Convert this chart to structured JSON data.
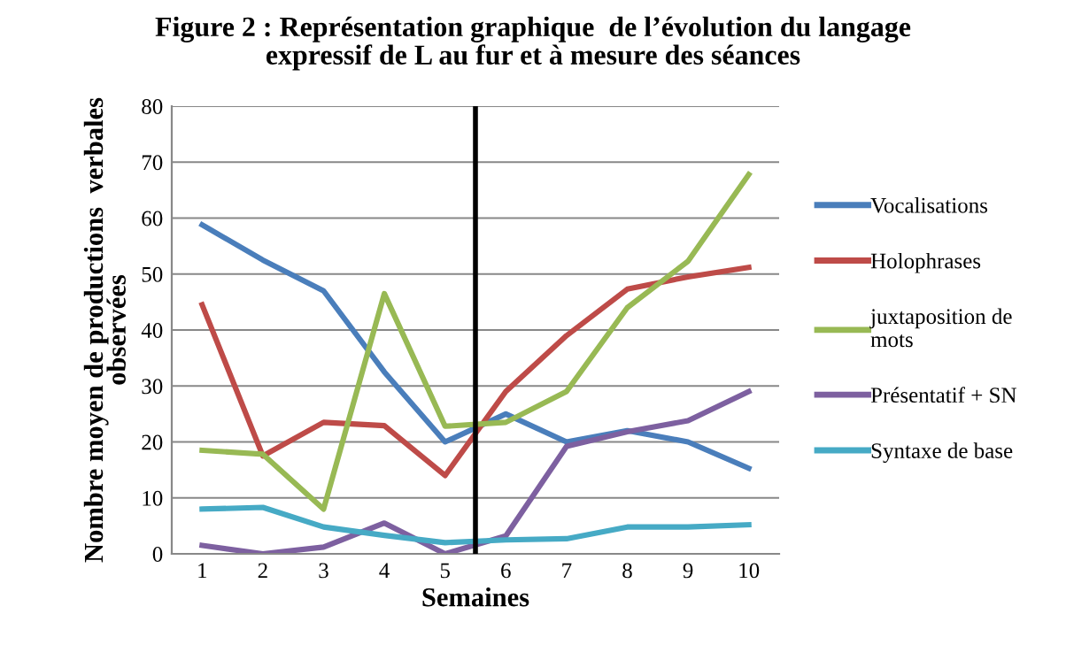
{
  "chart_data": {
    "type": "line",
    "title": "Figure 2 : Représentation graphique  de l’évolution du langage\nexpressif de L au fur et à mesure des séances",
    "xlabel": "Semaines",
    "ylabel": "Nombre moyen de productions  verbales\nobservées",
    "x": [
      1,
      2,
      3,
      4,
      5,
      6,
      7,
      8,
      9,
      10
    ],
    "xlim": [
      0.5,
      10.5
    ],
    "xticks": [
      1,
      2,
      3,
      4,
      5,
      6,
      7,
      8,
      9,
      10
    ],
    "ylim": [
      0,
      80
    ],
    "yticks": [
      0,
      10,
      20,
      30,
      40,
      50,
      60,
      70,
      80
    ],
    "grid": "y",
    "legend": "right",
    "marker": "none",
    "line_style": "solid",
    "ref_lines": [
      {
        "axis": "x",
        "value": 5.5,
        "color": "#000000",
        "line_style": "solid"
      }
    ],
    "series": [
      {
        "name": "Vocalisations",
        "color": "#4a7ebb",
        "values": [
          58.8,
          52.5,
          47,
          32.5,
          20,
          25,
          20,
          22,
          20,
          15.3
        ]
      },
      {
        "name": "Holophrases",
        "color": "#be4b48",
        "values": [
          44.5,
          17.5,
          23.5,
          22.9,
          14,
          29,
          39,
          47.3,
          49.5,
          51.2
        ]
      },
      {
        "name": "juxtaposition de\nmots",
        "color": "#98b954",
        "values": [
          18.5,
          17.8,
          8,
          46.5,
          22.8,
          23.5,
          29,
          44,
          52.3,
          67.8
        ]
      },
      {
        "name": "Présentatif + SN",
        "color": "#7d60a0",
        "values": [
          1.5,
          0,
          1.2,
          5.5,
          0,
          3.2,
          19.2,
          21.8,
          23.8,
          29
        ]
      },
      {
        "name": "Syntaxe de base",
        "color": "#46aac5",
        "values": [
          8,
          8.3,
          4.8,
          3.3,
          2,
          2.5,
          2.7,
          4.8,
          4.8,
          5.2
        ]
      }
    ]
  }
}
